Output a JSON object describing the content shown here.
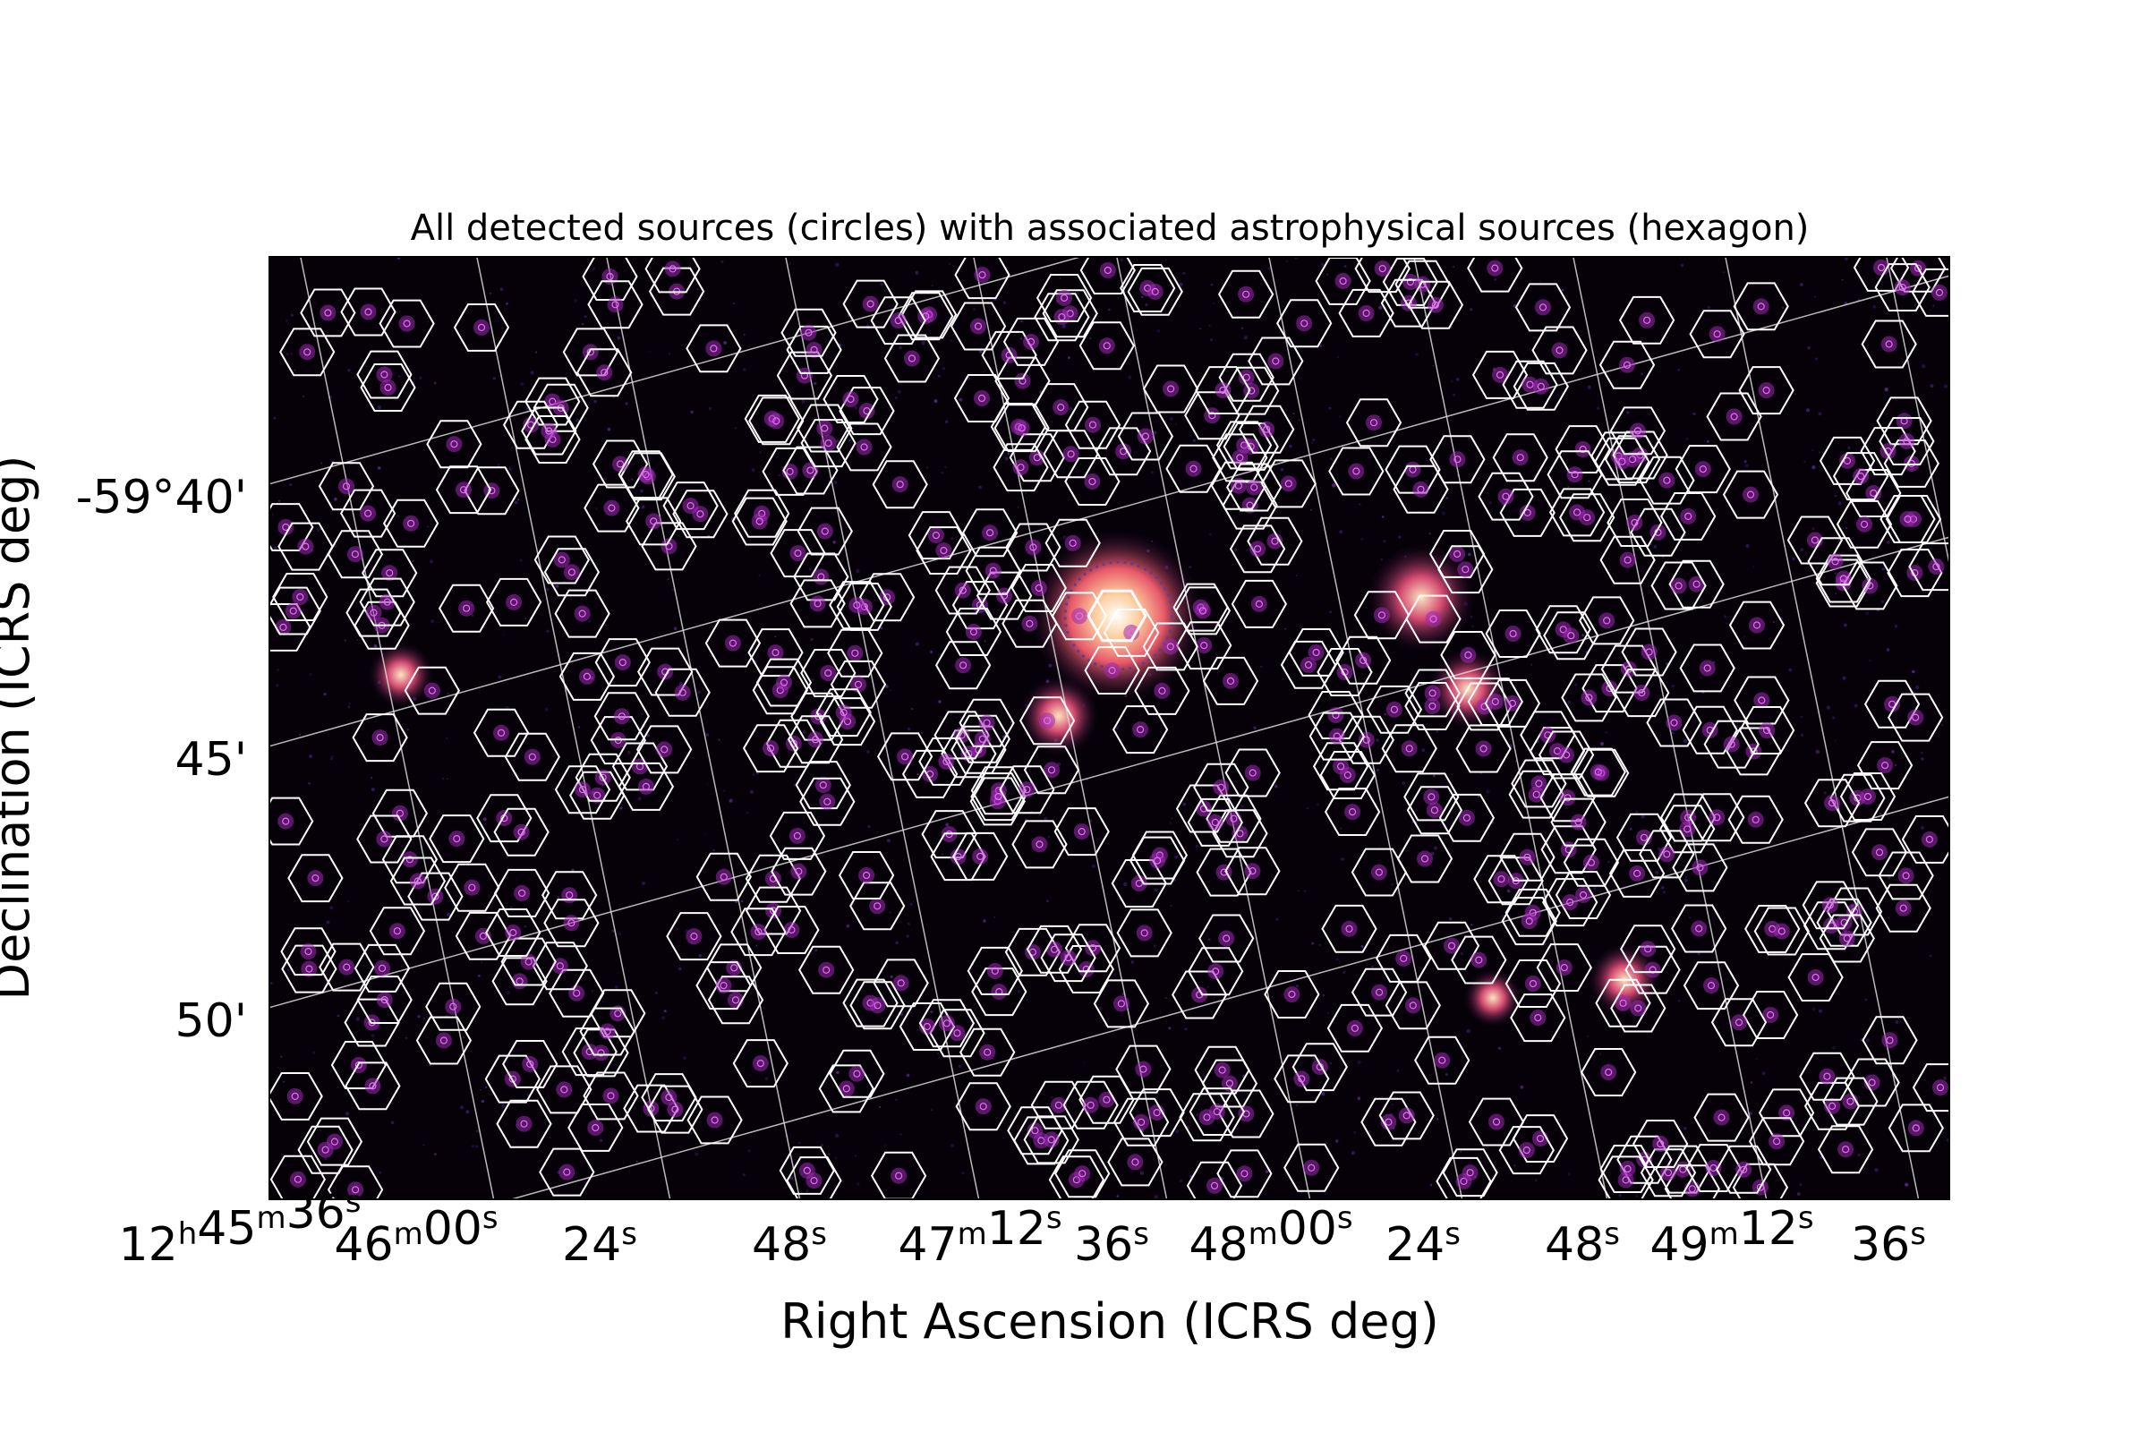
{
  "chart_data": {
    "type": "scatter",
    "title": "All detected sources (circles) with associated astrophysical sources (hexagon)",
    "xlabel": "Right Ascension (ICRS deg)",
    "ylabel": "Declination (ICRS deg)",
    "x_ticks": [
      {
        "h": "12",
        "m": "45",
        "s": "36",
        "ra_deg": 191.4
      },
      {
        "m": "46",
        "s": "00",
        "ra_deg": 191.5
      },
      {
        "s": "24",
        "ra_deg": 191.6
      },
      {
        "s": "48",
        "ra_deg": 191.7
      },
      {
        "m": "47",
        "s": "12",
        "ra_deg": 191.8
      },
      {
        "s": "36",
        "ra_deg": 191.9
      },
      {
        "m": "48",
        "s": "00",
        "ra_deg": 192.0
      },
      {
        "s": "24",
        "ra_deg": 192.1
      },
      {
        "s": "48",
        "ra_deg": 192.2
      },
      {
        "m": "49",
        "s": "12",
        "ra_deg": 192.3
      },
      {
        "s": "36",
        "ra_deg": 192.4
      }
    ],
    "y_ticks": [
      {
        "label": "-59°40'",
        "dec_deg": -59.6667
      },
      {
        "label": "45'",
        "dec_deg": -59.75
      },
      {
        "label": "50'",
        "dec_deg": -59.8333
      }
    ],
    "colormap": "magma",
    "marker_color": "#ffffff",
    "detected_marker": "circle",
    "associated_marker": "hexagon",
    "grid": true,
    "bright_sources": [
      {
        "ra_deg": 191.926,
        "dec_deg": -59.705
      },
      {
        "ra_deg": 192.112,
        "dec_deg": -59.702
      },
      {
        "ra_deg": 192.139,
        "dec_deg": -59.728
      },
      {
        "ra_deg": 191.855,
        "dec_deg": -59.743
      },
      {
        "ra_deg": 191.441,
        "dec_deg": -59.722
      },
      {
        "ra_deg": 192.232,
        "dec_deg": -59.791
      },
      {
        "ra_deg": 192.172,
        "dec_deg": -59.829
      }
    ]
  }
}
